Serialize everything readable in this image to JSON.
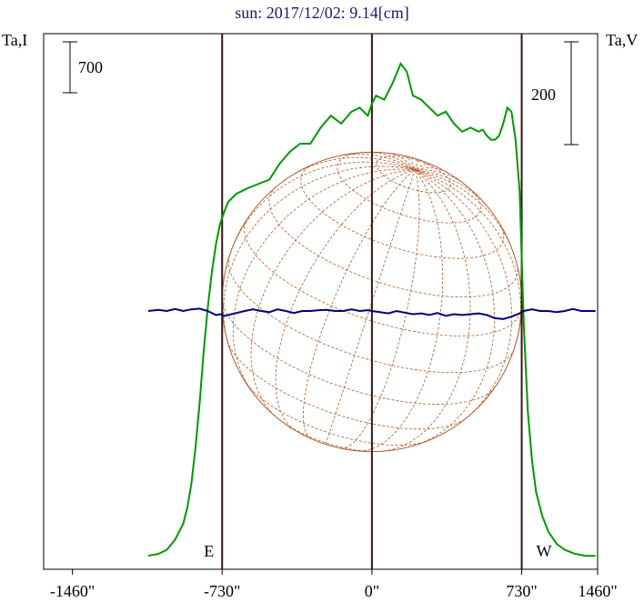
{
  "chart_data": {
    "type": "line",
    "title": "sun: 2017/12/02: 9.14[cm]",
    "left_axis_label": "Ta,I",
    "right_axis_label": "Ta,V",
    "left_scale_bar_label": "700",
    "right_scale_bar_label": "200",
    "x_tick_labels": [
      "-1460\"",
      "-730\"",
      "0\"",
      "730\"",
      "1460\""
    ],
    "x_ticks": [
      -1460,
      -730,
      0,
      730,
      1460
    ],
    "xlim": [
      -1600,
      1100
    ],
    "limb_markers": [
      {
        "x": -730,
        "label": "E"
      },
      {
        "x": 730,
        "label": "W"
      }
    ],
    "center_marker": 0,
    "grid": false,
    "series": [
      {
        "color": "#009900",
        "x": [
          -1090,
          -1040,
          -1000,
          -960,
          -920,
          -900,
          -880,
          -860,
          -840,
          -820,
          -800,
          -780,
          -760,
          -740,
          -720,
          -700,
          -680,
          -660,
          -640,
          -600,
          -550,
          -500,
          -450,
          -400,
          -350,
          -300,
          -250,
          -200,
          -150,
          -100,
          -60,
          -20,
          0,
          20,
          60,
          100,
          140,
          170,
          200,
          240,
          280,
          320,
          360,
          400,
          440,
          480,
          520,
          540,
          560,
          580,
          600,
          620,
          640,
          660,
          680,
          700,
          720,
          740,
          760,
          780,
          800,
          830,
          860,
          900,
          940,
          990,
          1040,
          1090
        ],
        "y": [
          0.02,
          0.025,
          0.035,
          0.06,
          0.1,
          0.14,
          0.2,
          0.29,
          0.4,
          0.53,
          0.64,
          0.73,
          0.8,
          0.85,
          0.88,
          0.905,
          0.915,
          0.925,
          0.93,
          0.94,
          0.95,
          0.96,
          1.0,
          1.03,
          1.05,
          1.05,
          1.09,
          1.12,
          1.1,
          1.13,
          1.14,
          1.12,
          1.15,
          1.17,
          1.16,
          1.2,
          1.25,
          1.23,
          1.17,
          1.16,
          1.14,
          1.12,
          1.13,
          1.1,
          1.08,
          1.09,
          1.08,
          1.085,
          1.07,
          1.06,
          1.06,
          1.07,
          1.1,
          1.14,
          1.13,
          1.06,
          0.93,
          0.6,
          0.38,
          0.26,
          0.18,
          0.12,
          0.08,
          0.05,
          0.035,
          0.025,
          0.02,
          0.02
        ]
      },
      {
        "color": "#00007f",
        "x": [
          -1090,
          -1040,
          -1000,
          -960,
          -920,
          -880,
          -840,
          -800,
          -760,
          -740,
          -720,
          -700,
          -660,
          -620,
          -580,
          -540,
          -500,
          -460,
          -420,
          -380,
          -340,
          -300,
          -260,
          -220,
          -180,
          -140,
          -100,
          -60,
          -20,
          0,
          40,
          80,
          120,
          160,
          200,
          240,
          280,
          320,
          360,
          400,
          440,
          480,
          520,
          560,
          600,
          640,
          680,
          700,
          720,
          740,
          780,
          820,
          860,
          900,
          940,
          980,
          1020,
          1060,
          1090
        ],
        "y": [
          0.0,
          0.003,
          0.0,
          0.005,
          0.0,
          0.004,
          0.006,
          0.0,
          -0.01,
          -0.008,
          -0.012,
          -0.01,
          -0.005,
          0.0,
          0.004,
          0.0,
          -0.003,
          0.004,
          0.0,
          -0.005,
          0.0,
          0.0,
          0.002,
          0.003,
          0.0,
          0.0,
          0.004,
          0.0,
          0.002,
          0.0,
          -0.003,
          -0.006,
          0.0,
          -0.004,
          -0.008,
          -0.006,
          -0.01,
          -0.005,
          -0.012,
          -0.008,
          -0.01,
          -0.008,
          -0.006,
          -0.01,
          -0.018,
          -0.02,
          -0.014,
          -0.01,
          -0.006,
          0.0,
          0.004,
          0.0,
          0.0,
          -0.003,
          0.0,
          0.005,
          0.0,
          0.0,
          0.0
        ]
      }
    ],
    "solar_disk": {
      "radius": 730,
      "color": "#b05a28"
    }
  }
}
